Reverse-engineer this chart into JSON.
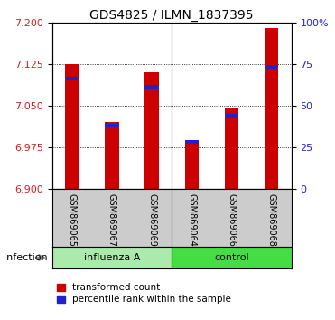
{
  "title": "GDS4825 / ILMN_1837395",
  "samples": [
    "GSM869065",
    "GSM869067",
    "GSM869069",
    "GSM869064",
    "GSM869066",
    "GSM869068"
  ],
  "red_values": [
    7.125,
    7.02,
    7.11,
    6.985,
    7.045,
    7.19
  ],
  "blue_percentiles": [
    65,
    37,
    60,
    27,
    43,
    72
  ],
  "y_min": 6.9,
  "y_max": 7.2,
  "y_ticks": [
    6.9,
    6.975,
    7.05,
    7.125,
    7.2
  ],
  "right_y_ticks": [
    0,
    25,
    50,
    75,
    100
  ],
  "bar_color_red": "#cc0000",
  "bar_color_blue": "#2222cc",
  "bar_width": 0.35,
  "left_tick_color": "#cc2222",
  "right_tick_color": "#2222cc",
  "plot_bg_color": "#ffffff",
  "label_area_bg": "#cccccc",
  "influenza_color": "#aaeaaa",
  "control_color": "#44dd44",
  "infection_label": "infection",
  "legend_red_label": "transformed count",
  "legend_blue_label": "percentile rank within the sample",
  "group_boundary": 2.5
}
